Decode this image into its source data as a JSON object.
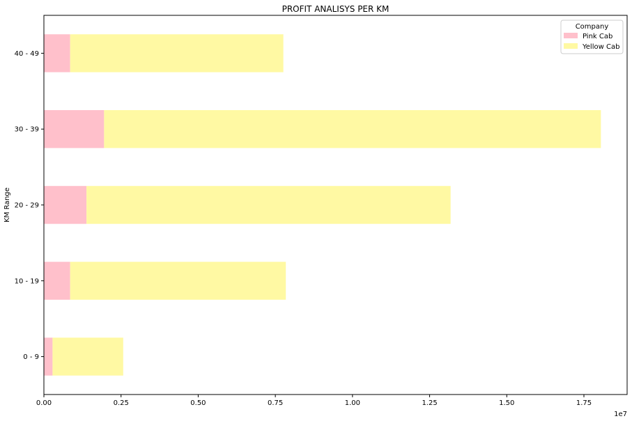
{
  "chart_data": {
    "type": "bar",
    "orientation": "horizontal",
    "stacked": true,
    "title": "PROFIT ANALISYS PER KM",
    "xlabel": "",
    "ylabel": "KM Range",
    "x_offset_label": "1e7",
    "categories": [
      "0 - 9",
      "10 - 19",
      "20 - 29",
      "30 - 39",
      "40 - 49"
    ],
    "series": [
      {
        "name": "Pink Cab",
        "color": "#ffc0cb",
        "values": [
          280000,
          850000,
          1380000,
          1950000,
          850000
        ]
      },
      {
        "name": "Yellow Cab",
        "color": "#fff9a3",
        "values": [
          2290000,
          6990000,
          11800000,
          16100000,
          6910000
        ]
      }
    ],
    "xlim": [
      0,
      18900000
    ],
    "xticks": [
      0,
      2500000,
      5000000,
      7500000,
      10000000,
      12500000,
      15000000,
      17500000
    ],
    "xtick_labels": [
      "0.00",
      "0.25",
      "0.50",
      "0.75",
      "1.00",
      "1.25",
      "1.50",
      "1.75"
    ],
    "legend": {
      "title": "Company",
      "placement": "top-right"
    },
    "grid": false
  }
}
